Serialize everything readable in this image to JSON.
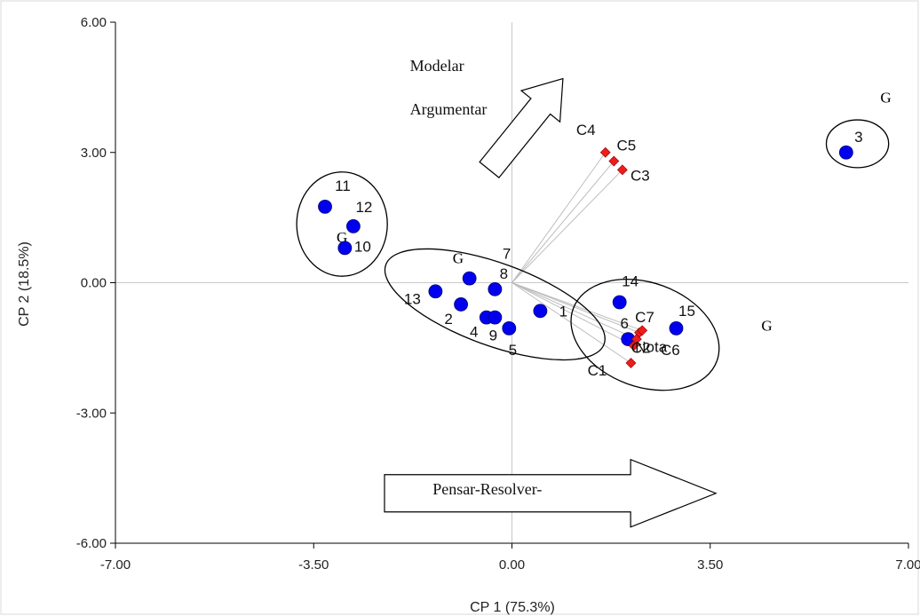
{
  "chart_data": {
    "type": "scatter",
    "xlabel": "CP 1 (75.3%)",
    "ylabel": "CP 2 (18.5%)",
    "xlim": [
      -7.0,
      7.0
    ],
    "ylim": [
      -6.0,
      6.0
    ],
    "x_ticks": [
      -7.0,
      -3.5,
      0.0,
      3.5,
      7.0
    ],
    "x_tick_labels": [
      "-7.00",
      "-3.50",
      "0.00",
      "3.50",
      "7.00"
    ],
    "y_ticks": [
      6.0,
      3.0,
      0.0,
      -3.0,
      -6.0
    ],
    "y_tick_labels": [
      "6.00",
      "3.00",
      "0.00",
      "-3.00",
      "-6.00"
    ],
    "grid": "zero lines only",
    "colors": {
      "points": "#0000ee",
      "criteria": "#ee1c1c",
      "axis": "#000000",
      "zero_line": "#c8c8c8",
      "vectors": "#bdbdbd",
      "frame": "#d9d9d9"
    },
    "series": [
      {
        "marker": "circle",
        "points": [
          {
            "label": "1",
            "x": 0.5,
            "y": -0.65
          },
          {
            "label": "2",
            "x": -0.9,
            "y": -0.5
          },
          {
            "label": "3",
            "x": 5.9,
            "y": 3.0
          },
          {
            "label": "4",
            "x": -0.45,
            "y": -0.8
          },
          {
            "label": "5",
            "x": -0.05,
            "y": -1.05
          },
          {
            "label": "6",
            "x": 2.05,
            "y": -1.3
          },
          {
            "label": "7",
            "x": -0.75,
            "y": 0.1
          },
          {
            "label": "8",
            "x": -0.3,
            "y": -0.15
          },
          {
            "label": "9",
            "x": -0.3,
            "y": -0.8
          },
          {
            "label": "10",
            "x": -2.95,
            "y": 0.8
          },
          {
            "label": "11",
            "x": -3.3,
            "y": 1.75
          },
          {
            "label": "12",
            "x": -2.8,
            "y": 1.3
          },
          {
            "label": "13",
            "x": -1.35,
            "y": -0.2
          },
          {
            "label": "14",
            "x": 1.9,
            "y": -0.45
          },
          {
            "label": "15",
            "x": 2.9,
            "y": -1.05
          }
        ]
      },
      {
        "marker": "diamond",
        "points": [
          {
            "label": "C1",
            "x": 2.1,
            "y": -1.85
          },
          {
            "label": "C2",
            "x": 2.15,
            "y": -1.45
          },
          {
            "label": "C3",
            "x": 1.95,
            "y": 2.6
          },
          {
            "label": "C4",
            "x": 1.65,
            "y": 3.0
          },
          {
            "label": "C5",
            "x": 1.8,
            "y": 2.8
          },
          {
            "label": "C6",
            "x": 2.2,
            "y": -1.3
          },
          {
            "label": "C7",
            "x": 2.25,
            "y": -1.15
          },
          {
            "label": "Nota",
            "x": 2.3,
            "y": -1.1
          }
        ]
      }
    ],
    "groups": [
      {
        "label": "G",
        "members": [
          "10",
          "11",
          "12"
        ],
        "center": {
          "x": -3.0,
          "y": 1.35
        },
        "radius": {
          "x": 0.8,
          "y": 1.2
        }
      },
      {
        "label": "G",
        "members": [
          "1",
          "2",
          "4",
          "5",
          "7",
          "8",
          "9",
          "13"
        ],
        "center": {
          "x": -0.3,
          "y": -0.5
        },
        "radius": {
          "x": 2.05,
          "y": 0.95
        }
      },
      {
        "label": "G",
        "members": [
          "6",
          "14",
          "15",
          "C1",
          "C2",
          "C6",
          "C7",
          "Nota"
        ],
        "center": {
          "x": 2.35,
          "y": -1.2
        },
        "radius": {
          "x": 1.35,
          "y": 1.2
        }
      },
      {
        "label": "G",
        "members": [
          "3"
        ],
        "center": {
          "x": 6.1,
          "y": 3.2
        },
        "radius": {
          "x": 0.55,
          "y": 0.55
        }
      }
    ],
    "annotations": [
      {
        "text": "Modelar",
        "x": -1.8,
        "y": 5.0
      },
      {
        "text": "Argumentar",
        "x": -1.8,
        "y": 4.0
      },
      {
        "text": "Pensar-Resolver-",
        "x": -1.4,
        "y": -4.75
      }
    ],
    "arrows": [
      {
        "direction": "up-right",
        "from": {
          "x": -0.4,
          "y": 2.6
        },
        "to": {
          "x": 0.9,
          "y": 4.7
        }
      },
      {
        "direction": "right",
        "from": {
          "x": -2.25,
          "y": -4.85
        },
        "to": {
          "x": 3.6,
          "y": -4.85
        }
      }
    ]
  }
}
